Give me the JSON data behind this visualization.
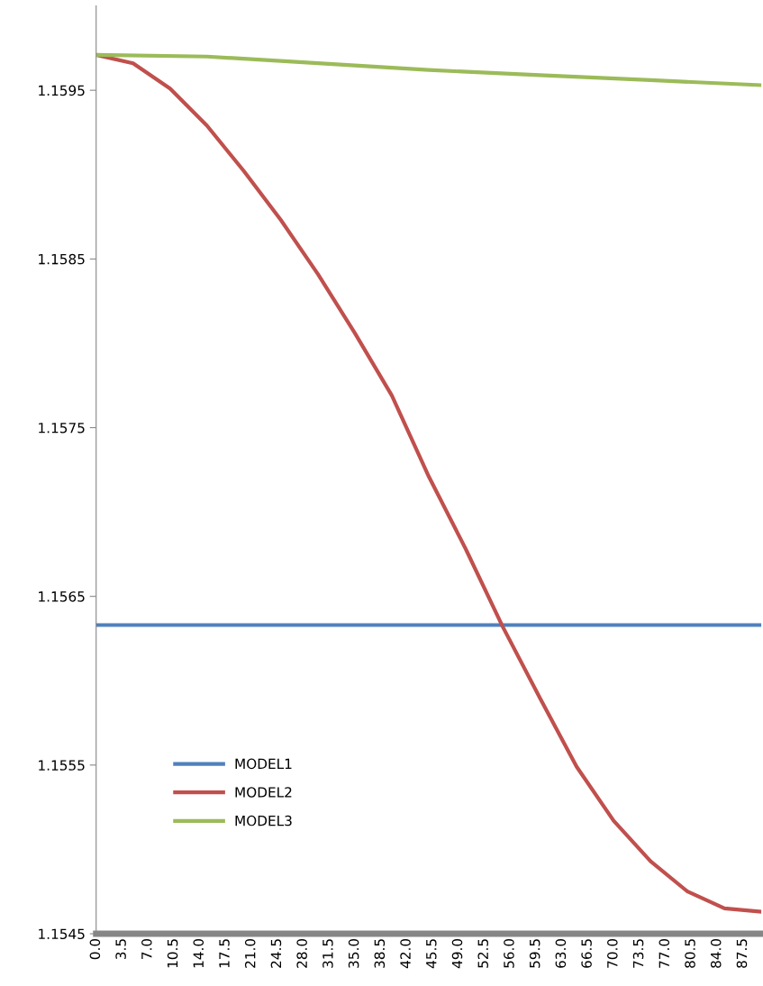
{
  "chart_data": {
    "type": "line",
    "xlim": [
      0,
      90
    ],
    "xticks": [
      {
        "value": 0,
        "label": "0.0"
      },
      {
        "value": 3.5,
        "label": "3.5"
      },
      {
        "value": 7,
        "label": "7.0"
      },
      {
        "value": 10.5,
        "label": "10.5"
      },
      {
        "value": 14,
        "label": "14.0"
      },
      {
        "value": 17.5,
        "label": "17.5"
      },
      {
        "value": 21,
        "label": "21.0"
      },
      {
        "value": 24.5,
        "label": "24.5"
      },
      {
        "value": 28,
        "label": "28.0"
      },
      {
        "value": 31.5,
        "label": "31.5"
      },
      {
        "value": 35,
        "label": "35.0"
      },
      {
        "value": 38.5,
        "label": "38.5"
      },
      {
        "value": 42,
        "label": "42.0"
      },
      {
        "value": 45.5,
        "label": "45.5"
      },
      {
        "value": 49,
        "label": "49.0"
      },
      {
        "value": 52.5,
        "label": "52.5"
      },
      {
        "value": 56,
        "label": "56.0"
      },
      {
        "value": 59.5,
        "label": "59.5"
      },
      {
        "value": 63,
        "label": "63.0"
      },
      {
        "value": 66.5,
        "label": "66.5"
      },
      {
        "value": 70,
        "label": "70.0"
      },
      {
        "value": 73.5,
        "label": "73.5"
      },
      {
        "value": 77,
        "label": "77.0"
      },
      {
        "value": 80.5,
        "label": "80.5"
      },
      {
        "value": 84,
        "label": "84.0"
      },
      {
        "value": 87.5,
        "label": "87.5"
      }
    ],
    "ylim": [
      1.1545,
      1.16
    ],
    "yticks": [
      1.1545,
      1.1555,
      1.1565,
      1.1575,
      1.1585,
      1.1595
    ],
    "grid": false,
    "legend": "lower left",
    "marker": "none",
    "line_style": "solid",
    "series": [
      {
        "name": "MODEL1",
        "color": "#4f81bd",
        "x": [
          0,
          90
        ],
        "values": [
          1.15633,
          1.15633
        ]
      },
      {
        "name": "MODEL2",
        "color": "#c0504d",
        "x": [
          0,
          5,
          10,
          15,
          20,
          25,
          30,
          35,
          40,
          45,
          50,
          55,
          60,
          65,
          70,
          75,
          80,
          85,
          90
        ],
        "values": [
          1.15971,
          1.15966,
          1.15951,
          1.15929,
          1.15902,
          1.15873,
          1.15841,
          1.15806,
          1.15769,
          1.15721,
          1.15678,
          1.15632,
          1.1559,
          1.15549,
          1.15517,
          1.15493,
          1.15475,
          1.15465,
          1.15463
        ]
      },
      {
        "name": "MODEL3",
        "color": "#9bbb59",
        "x": [
          0,
          15,
          30,
          45,
          60,
          75,
          90
        ],
        "values": [
          1.15971,
          1.1597,
          1.15966,
          1.15962,
          1.15959,
          1.15956,
          1.15953
        ]
      }
    ]
  }
}
